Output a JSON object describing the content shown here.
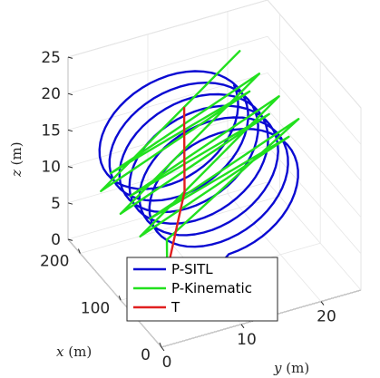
{
  "chart_data": {
    "type": "line3d",
    "title": "",
    "axes": {
      "x": {
        "label": "x (m)",
        "label_parts": [
          "x",
          " (m)"
        ],
        "ticks": [
          0,
          100,
          200
        ],
        "lim": [
          0,
          230
        ]
      },
      "y": {
        "label": "y (m)",
        "label_parts": [
          "y",
          " (m)"
        ],
        "ticks": [
          0,
          10,
          20
        ],
        "lim": [
          0,
          25
        ]
      },
      "z": {
        "label": "z (m)",
        "label_parts": [
          "z",
          " (m)"
        ],
        "ticks": [
          0,
          5,
          10,
          15,
          20,
          25
        ],
        "lim": [
          0,
          25
        ]
      }
    },
    "grid": true,
    "legend_position": "bottom-center",
    "series": [
      {
        "name": "P-SITL",
        "color": "#0a0ad2",
        "kind": "helix",
        "start": [
          5,
          3,
          4.8
        ],
        "approach": [
          [
            5,
            3,
            4.8
          ],
          [
            15,
            2.8,
            4.6
          ],
          [
            25,
            2.5,
            4.3
          ],
          [
            35,
            2.5,
            4.0
          ],
          [
            45,
            2.3,
            3.5
          ],
          [
            55,
            2.0,
            3.0
          ],
          [
            60,
            2.5,
            2.2
          ],
          [
            65,
            4.0,
            1.6
          ],
          [
            68,
            6.0,
            1.0
          ],
          [
            70,
            8.0,
            0.7
          ]
        ],
        "helix_start_x": 70,
        "helix_end_x": 225,
        "turns": 6.3,
        "center": [
          12,
          12.5
        ],
        "radius": [
          9,
          8
        ],
        "end_marker": false
      },
      {
        "name": "P-Kinematic",
        "color": "#22e01e",
        "kind": "zigzag",
        "start": [
          5,
          3,
          4.8
        ],
        "approach": [
          [
            5,
            3,
            4.8
          ],
          [
            30,
            3.2,
            6.0
          ],
          [
            55,
            3.5,
            7.5
          ],
          [
            75,
            4.5,
            8.5
          ]
        ],
        "helix_start_x": 75,
        "helix_end_x": 220,
        "turns": 6,
        "center": [
          12,
          13.5
        ],
        "radius": [
          9,
          8
        ]
      },
      {
        "name": "T",
        "color": "#e02020",
        "kind": "polyline",
        "points": [
          [
            80,
            5,
            4.8
          ],
          [
            90,
            6,
            6.3
          ],
          [
            100,
            7,
            7.8
          ],
          [
            110,
            8,
            9.3
          ],
          [
            120,
            9,
            10.8
          ],
          [
            130,
            9.5,
            12.3
          ],
          [
            140,
            10,
            13.8
          ],
          [
            150,
            10.5,
            15.3
          ],
          [
            160,
            11,
            16.8
          ],
          [
            170,
            11.5,
            18.3
          ]
        ],
        "start_marker": true
      }
    ],
    "markers": [
      {
        "series": "P-SITL",
        "at": [
          5,
          3,
          4.8
        ],
        "shape": "circle"
      }
    ]
  },
  "legend": {
    "items": [
      {
        "label": "P-SITL",
        "color": "#0a0ad2"
      },
      {
        "label": "P-Kinematic",
        "color": "#22e01e"
      },
      {
        "label": "T",
        "color": "#e02020"
      }
    ]
  }
}
